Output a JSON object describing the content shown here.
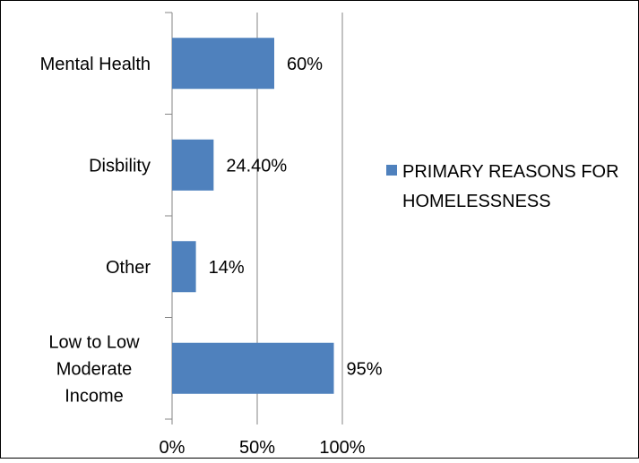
{
  "chart_data": {
    "type": "bar",
    "orientation": "horizontal",
    "categories": [
      "Low to Low Moderate Income",
      "Other",
      "Disbility",
      "Mental Health"
    ],
    "category_label_lines": [
      [
        "Low to Low",
        "Moderate",
        "Income"
      ],
      [
        "Other"
      ],
      [
        "Disbility"
      ],
      [
        "Mental Health"
      ]
    ],
    "series": [
      {
        "name": "PRIMARY REASONS FOR HOMELESSNESS",
        "values": [
          0.95,
          0.14,
          0.244,
          0.6
        ],
        "data_labels": [
          "95%",
          "14%",
          "24.40%",
          "60%"
        ],
        "color": "#4F81BD"
      }
    ],
    "xlim": [
      0,
      1
    ],
    "x_ticks": [
      0,
      0.5,
      1
    ],
    "x_tick_labels": [
      "0%",
      "50%",
      "100%"
    ],
    "grid": "vertical-major",
    "legend_position": "right",
    "legend_label_lines": [
      "PRIMARY REASONS FOR",
      "HOMELESSNESS"
    ]
  }
}
